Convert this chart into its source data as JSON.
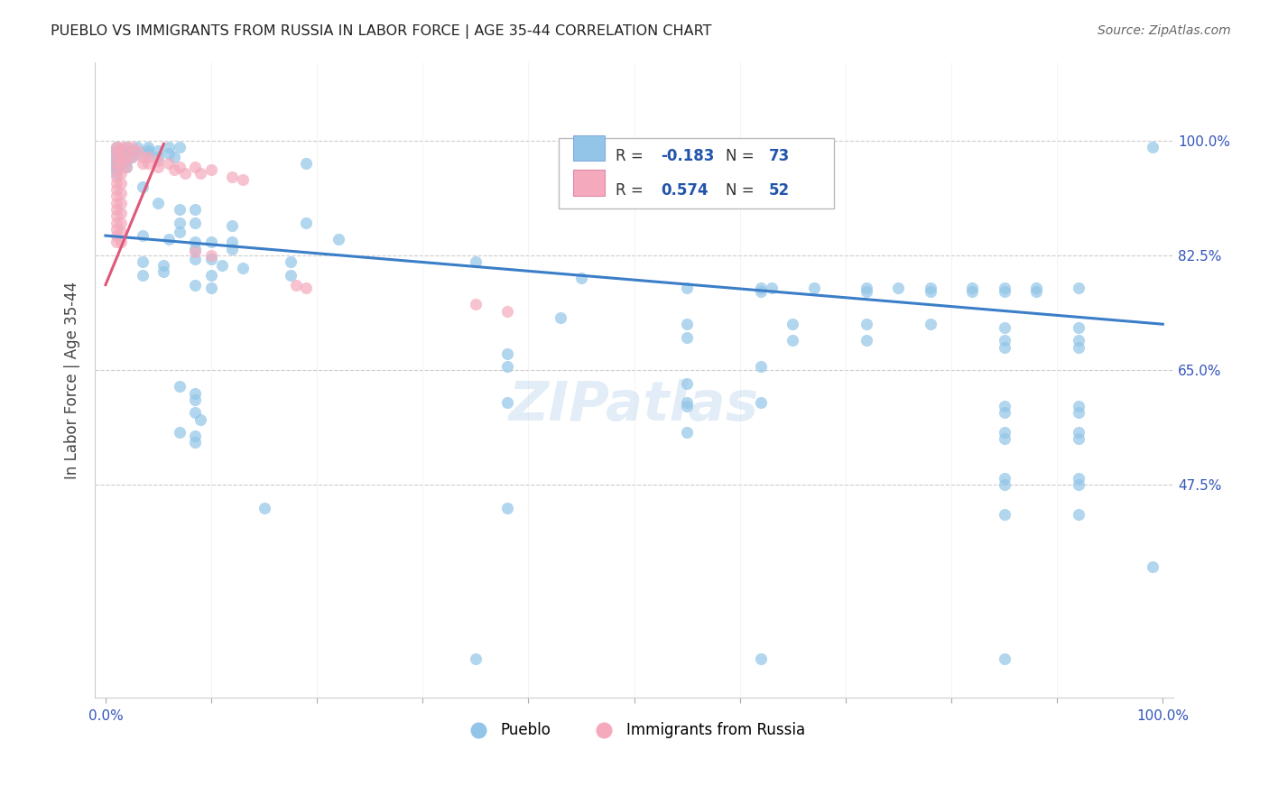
{
  "title": "PUEBLO VS IMMIGRANTS FROM RUSSIA IN LABOR FORCE | AGE 35-44 CORRELATION CHART",
  "source": "Source: ZipAtlas.com",
  "ylabel": "In Labor Force | Age 35-44",
  "pueblo_color": "#92C5E8",
  "russia_color": "#F4AABC",
  "pueblo_line_color": "#3B7EC8",
  "russia_line_color": "#E05878",
  "legend_r_color": "#2255AA",
  "ytick_values": [
    0.475,
    0.65,
    0.825,
    1.0
  ],
  "ytick_labels": [
    "47.5%",
    "65.0%",
    "82.5%",
    "100.0%"
  ],
  "xlim": [
    -0.01,
    1.01
  ],
  "ylim": [
    0.15,
    1.12
  ],
  "pueblo_line": [
    [
      0.0,
      0.855
    ],
    [
      1.0,
      0.72
    ]
  ],
  "russia_line": [
    [
      0.0,
      0.78
    ],
    [
      0.055,
      0.995
    ]
  ],
  "pueblo_scatter": [
    [
      0.01,
      0.99
    ],
    [
      0.01,
      0.985
    ],
    [
      0.01,
      0.98
    ],
    [
      0.01,
      0.975
    ],
    [
      0.01,
      0.97
    ],
    [
      0.01,
      0.965
    ],
    [
      0.01,
      0.96
    ],
    [
      0.01,
      0.955
    ],
    [
      0.01,
      0.95
    ],
    [
      0.015,
      0.985
    ],
    [
      0.015,
      0.975
    ],
    [
      0.015,
      0.965
    ],
    [
      0.02,
      0.99
    ],
    [
      0.02,
      0.98
    ],
    [
      0.02,
      0.97
    ],
    [
      0.02,
      0.96
    ],
    [
      0.025,
      0.985
    ],
    [
      0.025,
      0.975
    ],
    [
      0.03,
      0.99
    ],
    [
      0.03,
      0.98
    ],
    [
      0.04,
      0.99
    ],
    [
      0.04,
      0.985
    ],
    [
      0.04,
      0.98
    ],
    [
      0.05,
      0.985
    ],
    [
      0.05,
      0.975
    ],
    [
      0.06,
      0.99
    ],
    [
      0.06,
      0.98
    ],
    [
      0.065,
      0.975
    ],
    [
      0.07,
      0.99
    ],
    [
      0.19,
      0.965
    ],
    [
      0.035,
      0.93
    ],
    [
      0.05,
      0.905
    ],
    [
      0.07,
      0.895
    ],
    [
      0.085,
      0.895
    ],
    [
      0.07,
      0.875
    ],
    [
      0.085,
      0.875
    ],
    [
      0.07,
      0.86
    ],
    [
      0.12,
      0.87
    ],
    [
      0.19,
      0.875
    ],
    [
      0.22,
      0.85
    ],
    [
      0.035,
      0.855
    ],
    [
      0.06,
      0.85
    ],
    [
      0.085,
      0.845
    ],
    [
      0.085,
      0.835
    ],
    [
      0.1,
      0.845
    ],
    [
      0.12,
      0.845
    ],
    [
      0.12,
      0.835
    ],
    [
      0.085,
      0.82
    ],
    [
      0.1,
      0.82
    ],
    [
      0.035,
      0.815
    ],
    [
      0.055,
      0.81
    ],
    [
      0.11,
      0.81
    ],
    [
      0.13,
      0.805
    ],
    [
      0.175,
      0.815
    ],
    [
      0.035,
      0.795
    ],
    [
      0.055,
      0.8
    ],
    [
      0.1,
      0.795
    ],
    [
      0.175,
      0.795
    ],
    [
      0.085,
      0.78
    ],
    [
      0.1,
      0.775
    ],
    [
      0.35,
      0.815
    ],
    [
      0.45,
      0.79
    ],
    [
      0.55,
      0.775
    ],
    [
      0.62,
      0.775
    ],
    [
      0.63,
      0.775
    ],
    [
      0.67,
      0.775
    ],
    [
      0.72,
      0.775
    ],
    [
      0.75,
      0.775
    ],
    [
      0.78,
      0.775
    ],
    [
      0.62,
      0.77
    ],
    [
      0.72,
      0.77
    ],
    [
      0.78,
      0.77
    ],
    [
      0.82,
      0.775
    ],
    [
      0.85,
      0.775
    ],
    [
      0.88,
      0.775
    ],
    [
      0.92,
      0.775
    ],
    [
      0.82,
      0.77
    ],
    [
      0.85,
      0.77
    ],
    [
      0.88,
      0.77
    ],
    [
      0.43,
      0.73
    ],
    [
      0.55,
      0.72
    ],
    [
      0.65,
      0.72
    ],
    [
      0.72,
      0.72
    ],
    [
      0.78,
      0.72
    ],
    [
      0.85,
      0.715
    ],
    [
      0.92,
      0.715
    ],
    [
      0.55,
      0.7
    ],
    [
      0.65,
      0.695
    ],
    [
      0.72,
      0.695
    ],
    [
      0.85,
      0.695
    ],
    [
      0.92,
      0.695
    ],
    [
      0.85,
      0.685
    ],
    [
      0.92,
      0.685
    ],
    [
      0.38,
      0.675
    ],
    [
      0.62,
      0.655
    ],
    [
      0.38,
      0.655
    ],
    [
      0.55,
      0.63
    ],
    [
      0.07,
      0.625
    ],
    [
      0.085,
      0.615
    ],
    [
      0.085,
      0.605
    ],
    [
      0.38,
      0.6
    ],
    [
      0.55,
      0.6
    ],
    [
      0.55,
      0.595
    ],
    [
      0.62,
      0.6
    ],
    [
      0.085,
      0.585
    ],
    [
      0.09,
      0.575
    ],
    [
      0.85,
      0.595
    ],
    [
      0.92,
      0.595
    ],
    [
      0.85,
      0.585
    ],
    [
      0.92,
      0.585
    ],
    [
      0.07,
      0.555
    ],
    [
      0.085,
      0.55
    ],
    [
      0.085,
      0.54
    ],
    [
      0.55,
      0.555
    ],
    [
      0.85,
      0.555
    ],
    [
      0.92,
      0.555
    ],
    [
      0.85,
      0.545
    ],
    [
      0.92,
      0.545
    ],
    [
      0.85,
      0.485
    ],
    [
      0.92,
      0.485
    ],
    [
      0.85,
      0.475
    ],
    [
      0.92,
      0.475
    ],
    [
      0.15,
      0.44
    ],
    [
      0.38,
      0.44
    ],
    [
      0.85,
      0.43
    ],
    [
      0.92,
      0.43
    ],
    [
      0.99,
      0.99
    ],
    [
      0.35,
      0.21
    ],
    [
      0.62,
      0.21
    ],
    [
      0.85,
      0.21
    ],
    [
      0.99,
      0.35
    ]
  ],
  "russia_scatter": [
    [
      0.01,
      0.99
    ],
    [
      0.01,
      0.985
    ],
    [
      0.01,
      0.975
    ],
    [
      0.01,
      0.965
    ],
    [
      0.01,
      0.955
    ],
    [
      0.01,
      0.945
    ],
    [
      0.01,
      0.935
    ],
    [
      0.01,
      0.925
    ],
    [
      0.01,
      0.915
    ],
    [
      0.01,
      0.905
    ],
    [
      0.01,
      0.895
    ],
    [
      0.01,
      0.885
    ],
    [
      0.01,
      0.875
    ],
    [
      0.01,
      0.865
    ],
    [
      0.01,
      0.855
    ],
    [
      0.01,
      0.845
    ],
    [
      0.015,
      0.99
    ],
    [
      0.015,
      0.975
    ],
    [
      0.015,
      0.965
    ],
    [
      0.015,
      0.95
    ],
    [
      0.015,
      0.935
    ],
    [
      0.015,
      0.92
    ],
    [
      0.015,
      0.905
    ],
    [
      0.015,
      0.89
    ],
    [
      0.015,
      0.875
    ],
    [
      0.015,
      0.86
    ],
    [
      0.015,
      0.845
    ],
    [
      0.02,
      0.99
    ],
    [
      0.02,
      0.975
    ],
    [
      0.02,
      0.96
    ],
    [
      0.025,
      0.99
    ],
    [
      0.025,
      0.975
    ],
    [
      0.03,
      0.985
    ],
    [
      0.035,
      0.975
    ],
    [
      0.035,
      0.965
    ],
    [
      0.04,
      0.975
    ],
    [
      0.04,
      0.965
    ],
    [
      0.05,
      0.97
    ],
    [
      0.05,
      0.96
    ],
    [
      0.06,
      0.965
    ],
    [
      0.065,
      0.955
    ],
    [
      0.07,
      0.96
    ],
    [
      0.075,
      0.95
    ],
    [
      0.085,
      0.96
    ],
    [
      0.09,
      0.95
    ],
    [
      0.1,
      0.955
    ],
    [
      0.12,
      0.945
    ],
    [
      0.13,
      0.94
    ],
    [
      0.085,
      0.83
    ],
    [
      0.1,
      0.825
    ],
    [
      0.18,
      0.78
    ],
    [
      0.19,
      0.775
    ],
    [
      0.35,
      0.75
    ],
    [
      0.38,
      0.74
    ]
  ]
}
